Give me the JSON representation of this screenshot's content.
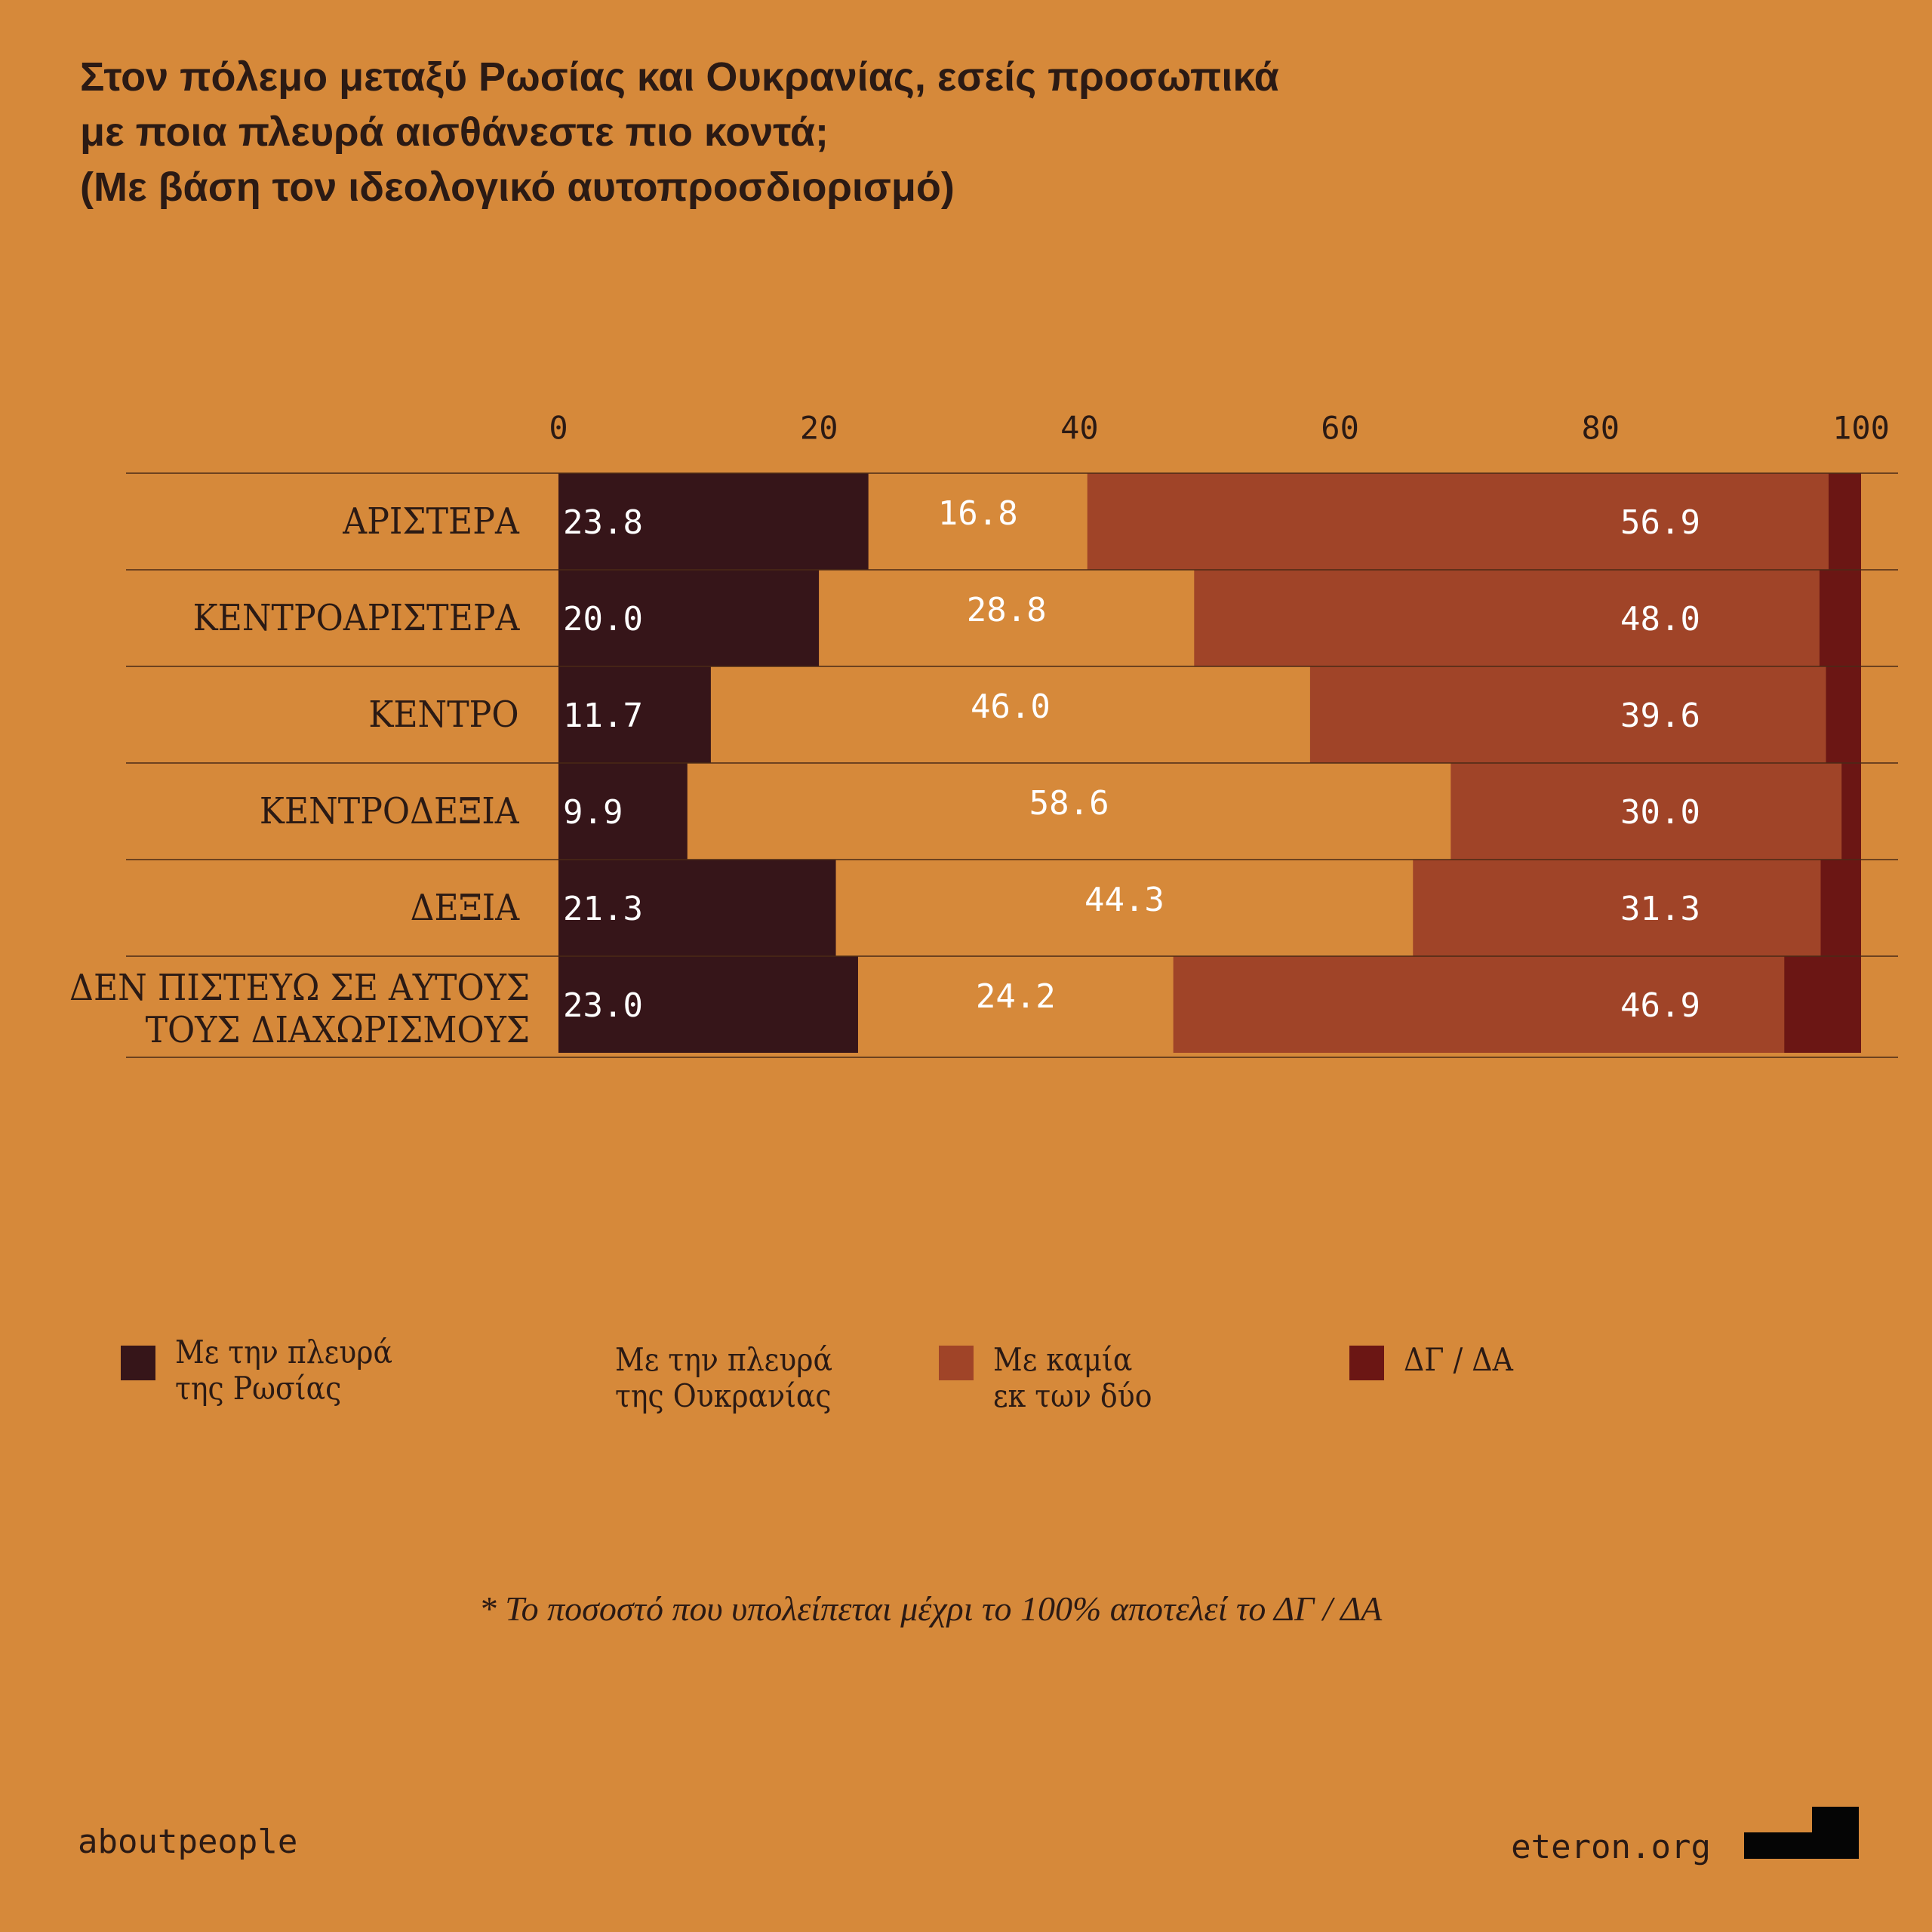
{
  "chart_data": {
    "type": "stacked-bar",
    "title": "Στον πόλεμο μεταξύ Ρωσίας και Ουκρανίας, εσείς προσωπικά\nμε ποια πλευρά αισθάνεστε πιο κοντά;\n(Με βάση τον ιδεολογικό αυτοπροσδιορισμό)",
    "categories": [
      "ΑΡΙΣΤΕΡΑ",
      "ΚΕΝΤΡΟΑΡΙΣΤΕΡΑ",
      "ΚΕΝΤΡΟ",
      "ΚΕΝΤΡΟΔΕΞΙΑ",
      "ΔΕΞΙΑ",
      "ΔΕΝ ΠΙΣΤΕΥΩ ΣΕ ΑΥΤΟΥΣ\nΤΟΥΣ ΔΙΑΧΩΡΙΣΜΟΥΣ"
    ],
    "series": [
      {
        "name": "Με την πλευρά\nτης Ρωσίας",
        "color": "#361519",
        "values": [
          23.8,
          20.0,
          11.7,
          9.9,
          21.3,
          23.0
        ],
        "value_labels": [
          "23.8",
          "20.0",
          "11.7",
          "9.9",
          "21.3",
          "23.0"
        ]
      },
      {
        "name": "Με την πλευρά\nτης Ουκρανίας",
        "color": "#d6893a",
        "values": [
          16.8,
          28.8,
          46.0,
          58.6,
          44.3,
          24.2
        ],
        "value_labels": [
          "16.8",
          "28.8",
          "46.0",
          "58.6",
          "44.3",
          "24.2"
        ]
      },
      {
        "name": "Με καμία\nεκ των δύο",
        "color": "#a04428",
        "values": [
          56.9,
          48.0,
          39.6,
          30.0,
          31.3,
          46.9
        ],
        "value_labels": [
          "56.9",
          "48.0",
          "39.6",
          "30.0",
          "31.3",
          "46.9"
        ]
      },
      {
        "name": "ΔΓ / ΔΑ",
        "color": "#6b1614",
        "values": [
          2.5,
          3.2,
          2.7,
          1.5,
          3.1,
          5.9
        ]
      }
    ],
    "xlim": [
      0,
      100
    ],
    "xticks": [
      0,
      20,
      40,
      60,
      80,
      100
    ],
    "footnote": "*  Το ποσοστό που υπολείπεται μέχρι το 100% αποτελεί το ΔΓ / ΔΑ",
    "source": "aboutpeople",
    "publisher": "eteron.org"
  }
}
